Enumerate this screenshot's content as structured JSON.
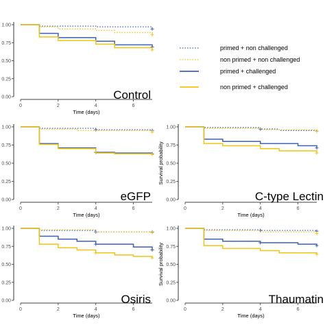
{
  "chart_data": {
    "type": "line",
    "style": "step",
    "legend": {
      "placement": "top-right",
      "entries": [
        {
          "label": "primed + non challenged",
          "color": "#3d5fb8",
          "dash": "dotted"
        },
        {
          "label": "non primed + non challenged",
          "color": "#f2c40f",
          "dash": "dotted"
        },
        {
          "label": "primed + challenged",
          "color": "#3d5fb8",
          "dash": "solid"
        },
        {
          "label": "non primed + challenged",
          "color": "#f2c40f",
          "dash": "solid"
        }
      ]
    },
    "xlim": [
      0,
      7
    ],
    "ylim": [
      0,
      1
    ],
    "xticks": [
      0,
      2,
      4,
      6
    ],
    "yticks": [
      "0.00",
      "0.25",
      "0.50",
      "0.75",
      "1.00"
    ],
    "xlabel": "Time (days)",
    "panels": [
      {
        "title": "Control",
        "ylabel": "",
        "series": [
          {
            "name": "primed + non challenged",
            "color": "#3d5fb8",
            "dash": "dotted",
            "x": [
              0,
              1,
              4,
              7
            ],
            "y": [
              1.0,
              0.98,
              0.97,
              0.94
            ],
            "censor_x": [
              7
            ]
          },
          {
            "name": "non primed + non challenged",
            "color": "#f2c40f",
            "dash": "dotted",
            "x": [
              0,
              1,
              2,
              4,
              5,
              7
            ],
            "y": [
              1.0,
              0.97,
              0.94,
              0.92,
              0.89,
              0.86
            ],
            "censor_x": [
              7
            ]
          },
          {
            "name": "primed + challenged",
            "color": "#3d5fb8",
            "dash": "solid",
            "x": [
              0,
              1,
              2,
              4,
              5,
              7
            ],
            "y": [
              1.0,
              0.88,
              0.82,
              0.77,
              0.72,
              0.69
            ],
            "censor_x": [
              7
            ]
          },
          {
            "name": "non primed + challenged",
            "color": "#f2c40f",
            "dash": "solid",
            "x": [
              0,
              1,
              2,
              4,
              5,
              7
            ],
            "y": [
              1.0,
              0.83,
              0.78,
              0.73,
              0.68,
              0.65
            ],
            "censor_x": [
              7
            ]
          }
        ]
      },
      {
        "title": "eGFP",
        "ylabel": "",
        "series": [
          {
            "name": "primed + non challenged",
            "color": "#3d5fb8",
            "dash": "dotted",
            "x": [
              0,
              1,
              4,
              7
            ],
            "y": [
              1.0,
              0.98,
              0.96,
              0.95
            ],
            "censor_x": [
              4,
              7
            ]
          },
          {
            "name": "non primed + non challenged",
            "color": "#f2c40f",
            "dash": "dotted",
            "x": [
              0,
              1,
              3,
              7
            ],
            "y": [
              1.0,
              0.97,
              0.95,
              0.93
            ],
            "censor_x": [
              7
            ]
          },
          {
            "name": "primed + challenged",
            "color": "#3d5fb8",
            "dash": "solid",
            "x": [
              0,
              1,
              2,
              4,
              5,
              7
            ],
            "y": [
              1.0,
              0.77,
              0.71,
              0.65,
              0.64,
              0.63
            ],
            "censor_x": [
              4,
              7
            ]
          },
          {
            "name": "non primed + challenged",
            "color": "#f2c40f",
            "dash": "solid",
            "x": [
              0,
              1,
              2,
              4,
              5,
              7
            ],
            "y": [
              1.0,
              0.76,
              0.7,
              0.64,
              0.63,
              0.62
            ],
            "censor_x": [
              7
            ]
          }
        ]
      },
      {
        "title": "C-type Lectin",
        "ylabel": "Survival probability",
        "series": [
          {
            "name": "primed + non challenged",
            "color": "#3d5fb8",
            "dash": "dotted",
            "x": [
              0,
              1,
              4,
              5,
              7
            ],
            "y": [
              1.0,
              0.99,
              0.97,
              0.95,
              0.94
            ],
            "censor_x": [
              4,
              7
            ]
          },
          {
            "name": "non primed + non challenged",
            "color": "#f2c40f",
            "dash": "dotted",
            "x": [
              0,
              1,
              4,
              7
            ],
            "y": [
              1.0,
              0.98,
              0.96,
              0.94
            ],
            "censor_x": [
              7
            ]
          },
          {
            "name": "primed + challenged",
            "color": "#3d5fb8",
            "dash": "solid",
            "x": [
              0,
              1,
              2,
              4,
              6,
              7
            ],
            "y": [
              1.0,
              0.83,
              0.8,
              0.77,
              0.74,
              0.71
            ],
            "censor_x": [
              7
            ]
          },
          {
            "name": "non primed + challenged",
            "color": "#f2c40f",
            "dash": "solid",
            "x": [
              0,
              1,
              2,
              4,
              5,
              7
            ],
            "y": [
              1.0,
              0.77,
              0.74,
              0.7,
              0.67,
              0.64
            ],
            "censor_x": [
              7
            ]
          }
        ]
      },
      {
        "title": "Osiris",
        "ylabel": "",
        "series": [
          {
            "name": "primed + non challenged",
            "color": "#3d5fb8",
            "dash": "dotted",
            "x": [
              0,
              1,
              4,
              7
            ],
            "y": [
              1.0,
              0.97,
              0.95,
              0.95
            ],
            "censor_x": [
              4,
              7
            ]
          },
          {
            "name": "non primed + non challenged",
            "color": "#f2c40f",
            "dash": "dotted",
            "x": [
              0,
              1,
              4,
              7
            ],
            "y": [
              1.0,
              0.98,
              0.95,
              0.94
            ],
            "censor_x": [
              7
            ]
          },
          {
            "name": "primed + challenged",
            "color": "#3d5fb8",
            "dash": "solid",
            "x": [
              0,
              1,
              2,
              3,
              4,
              6,
              7
            ],
            "y": [
              1.0,
              0.89,
              0.85,
              0.82,
              0.78,
              0.74,
              0.7
            ],
            "censor_x": [
              4,
              7
            ]
          },
          {
            "name": "non primed + challenged",
            "color": "#f2c40f",
            "dash": "solid",
            "x": [
              0,
              1,
              2,
              3,
              4,
              5,
              6,
              7
            ],
            "y": [
              1.0,
              0.78,
              0.73,
              0.7,
              0.66,
              0.63,
              0.61,
              0.59
            ],
            "censor_x": [
              4,
              7
            ]
          }
        ]
      },
      {
        "title": "Thaumatin",
        "ylabel": "Survival probability",
        "series": [
          {
            "name": "primed + non challenged",
            "color": "#3d5fb8",
            "dash": "dotted",
            "x": [
              0,
              1,
              4,
              7
            ],
            "y": [
              1.0,
              0.98,
              0.97,
              0.96
            ],
            "censor_x": [
              4,
              7
            ]
          },
          {
            "name": "non primed + non challenged",
            "color": "#f2c40f",
            "dash": "dotted",
            "x": [
              0,
              1,
              4,
              7
            ],
            "y": [
              1.0,
              0.97,
              0.95,
              0.93
            ],
            "censor_x": [
              7
            ]
          },
          {
            "name": "primed + challenged",
            "color": "#3d5fb8",
            "dash": "solid",
            "x": [
              0,
              1,
              2,
              4,
              6,
              7
            ],
            "y": [
              1.0,
              0.85,
              0.82,
              0.8,
              0.78,
              0.76
            ],
            "censor_x": [
              4,
              7
            ]
          },
          {
            "name": "non primed + challenged",
            "color": "#f2c40f",
            "dash": "solid",
            "x": [
              0,
              1,
              2,
              4,
              5,
              7
            ],
            "y": [
              1.0,
              0.76,
              0.72,
              0.69,
              0.66,
              0.64
            ],
            "censor_x": [
              7
            ]
          }
        ]
      }
    ]
  }
}
